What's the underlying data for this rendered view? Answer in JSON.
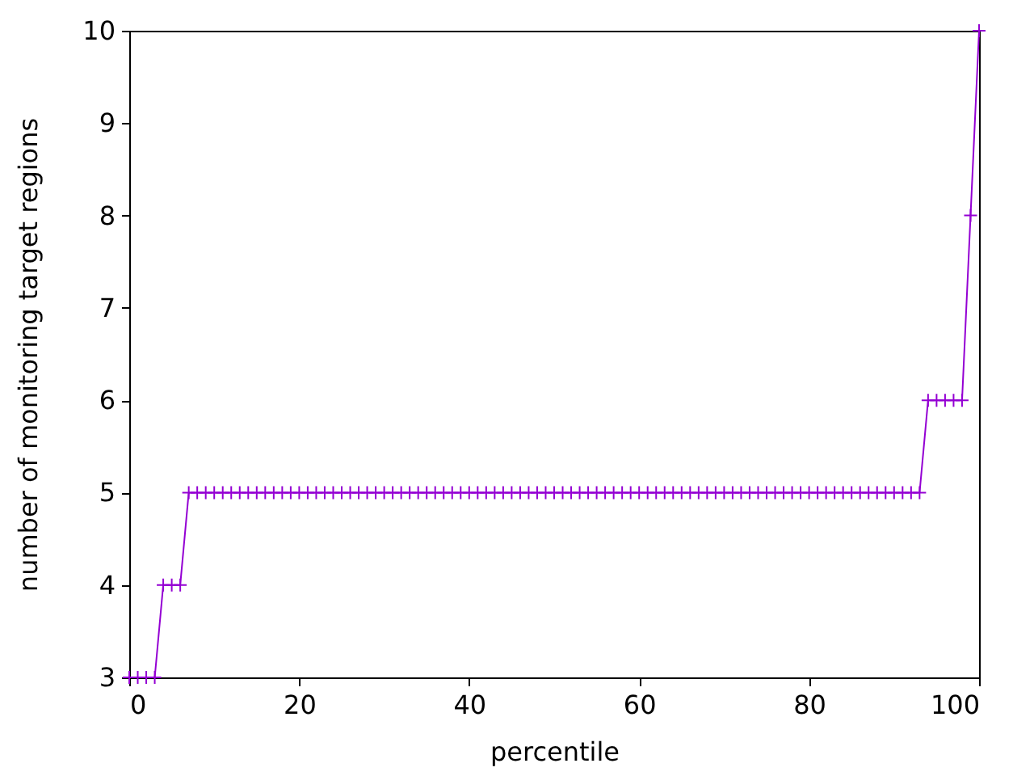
{
  "chart_data": {
    "type": "line",
    "xlabel": "percentile",
    "ylabel": "number of monitoring target regions",
    "x": [
      0,
      1,
      2,
      3,
      4,
      5,
      6,
      7,
      8,
      9,
      10,
      11,
      12,
      13,
      14,
      15,
      16,
      17,
      18,
      19,
      20,
      21,
      22,
      23,
      24,
      25,
      26,
      27,
      28,
      29,
      30,
      31,
      32,
      33,
      34,
      35,
      36,
      37,
      38,
      39,
      40,
      41,
      42,
      43,
      44,
      45,
      46,
      47,
      48,
      49,
      50,
      51,
      52,
      53,
      54,
      55,
      56,
      57,
      58,
      59,
      60,
      61,
      62,
      63,
      64,
      65,
      66,
      67,
      68,
      69,
      70,
      71,
      72,
      73,
      74,
      75,
      76,
      77,
      78,
      79,
      80,
      81,
      82,
      83,
      84,
      85,
      86,
      87,
      88,
      89,
      90,
      91,
      92,
      93,
      94,
      95,
      96,
      97,
      98,
      99,
      100
    ],
    "series": [
      {
        "color": "#9400d3",
        "values": [
          3,
          3,
          3,
          3,
          4,
          4,
          4,
          5,
          5,
          5,
          5,
          5,
          5,
          5,
          5,
          5,
          5,
          5,
          5,
          5,
          5,
          5,
          5,
          5,
          5,
          5,
          5,
          5,
          5,
          5,
          5,
          5,
          5,
          5,
          5,
          5,
          5,
          5,
          5,
          5,
          5,
          5,
          5,
          5,
          5,
          5,
          5,
          5,
          5,
          5,
          5,
          5,
          5,
          5,
          5,
          5,
          5,
          5,
          5,
          5,
          5,
          5,
          5,
          5,
          5,
          5,
          5,
          5,
          5,
          5,
          5,
          5,
          5,
          5,
          5,
          5,
          5,
          5,
          5,
          5,
          5,
          5,
          5,
          5,
          5,
          5,
          5,
          5,
          5,
          5,
          5,
          5,
          5,
          5,
          6,
          6,
          6,
          6,
          6,
          8,
          10
        ]
      }
    ],
    "xlim": [
      0,
      100
    ],
    "ylim": [
      3,
      10
    ],
    "xticks": [
      0,
      20,
      40,
      60,
      80,
      100
    ],
    "yticks": [
      3,
      4,
      5,
      6,
      7,
      8,
      9,
      10
    ],
    "marker": "cross",
    "line_style": "solid"
  }
}
